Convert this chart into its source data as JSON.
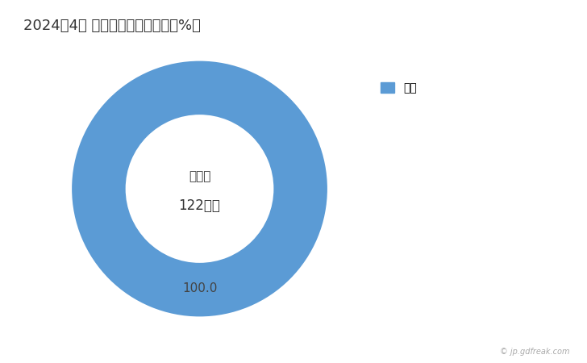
{
  "title": "2024年4月 輸出相手国のシェア（%）",
  "title_fontsize": 13,
  "slices": [
    100.0
  ],
  "labels": [
    "韓国"
  ],
  "colors": [
    "#5b9bd5"
  ],
  "center_text_line1": "総　額",
  "center_text_line2": "122万円",
  "slice_label": "100.0",
  "legend_label": "韓国",
  "watermark": "© jp.gdfreak.com",
  "background_color": "#ffffff",
  "donut_width": 0.42
}
